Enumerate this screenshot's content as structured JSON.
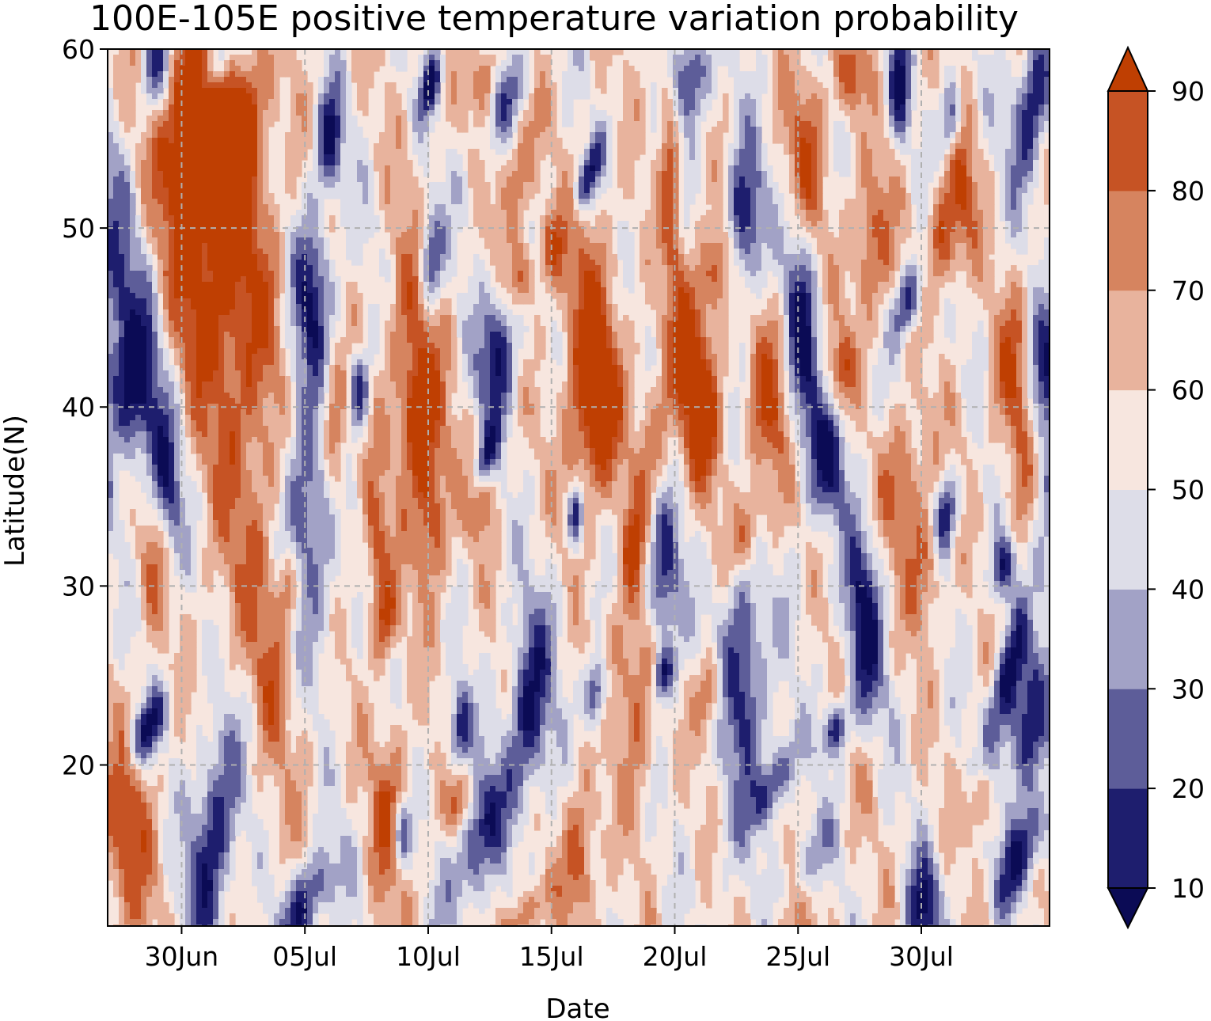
{
  "chart_data": {
    "type": "heatmap",
    "subtype": "filled-contour",
    "title": "100E-105E positive temperature variation probability",
    "xlabel": "Date",
    "ylabel": "Latitude(N)",
    "x_range_days_from_30Jun": [
      -3,
      35.2
    ],
    "x_ticks": [
      {
        "label": "30Jun",
        "day": 0
      },
      {
        "label": "05Jul",
        "day": 5
      },
      {
        "label": "10Jul",
        "day": 10
      },
      {
        "label": "15Jul",
        "day": 15
      },
      {
        "label": "20Jul",
        "day": 20
      },
      {
        "label": "25Jul",
        "day": 25
      },
      {
        "label": "30Jul",
        "day": 30
      }
    ],
    "ylim": [
      11,
      60
    ],
    "y_ticks": [
      20,
      30,
      40,
      50,
      60
    ],
    "grid": true,
    "colorbar": {
      "levels": [
        10,
        20,
        30,
        40,
        50,
        60,
        70,
        80,
        90
      ],
      "tick_labels": [
        "10",
        "20",
        "30",
        "40",
        "50",
        "60",
        "70",
        "80",
        "90"
      ],
      "extend": "both",
      "colors": [
        "#0b0b55",
        "#1e1e6e",
        "#5d5d99",
        "#a2a2c6",
        "#dddde8",
        "#f7e6df",
        "#e8b39d",
        "#d6845f",
        "#c65324",
        "#bf3f02"
      ]
    },
    "field_description": "probability (%) by date and latitude",
    "dominant_features": [
      {
        "label": "high",
        "approx_value": 90,
        "dates": "28Jun-03Jul",
        "lat": [
          26,
          60
        ]
      },
      {
        "label": "low",
        "approx_value": 10,
        "dates": "27Jun-29Jun",
        "lat": [
          40,
          52
        ]
      },
      {
        "label": "low",
        "approx_value": 10,
        "dates": "30Jun-02Jul",
        "lat": [
          11,
          19
        ]
      },
      {
        "label": "high",
        "approx_value": 85,
        "dates": "27Jun-29Jun",
        "lat": [
          11,
          20
        ]
      },
      {
        "label": "low",
        "approx_value": 20,
        "dates": "04Jul-06Jul",
        "lat": [
          27,
          50
        ]
      },
      {
        "label": "high",
        "approx_value": 80,
        "dates": "08Jul-10Jul",
        "lat": [
          36,
          50
        ]
      },
      {
        "label": "low",
        "approx_value": 20,
        "dates": "22Jul-23Jul",
        "lat": [
          47,
          53
        ]
      },
      {
        "label": "low",
        "approx_value": 20,
        "dates": "04Aug",
        "lat": [
          19,
          23
        ]
      }
    ]
  }
}
